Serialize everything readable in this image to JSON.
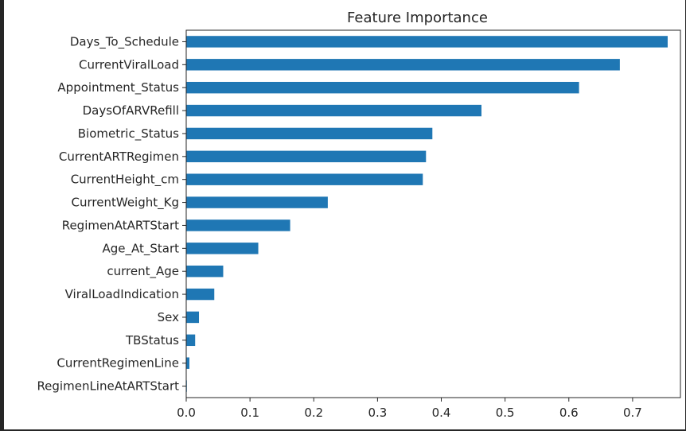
{
  "chart_data": {
    "type": "bar",
    "orientation": "horizontal",
    "title": "Feature Importance",
    "xlabel": "",
    "ylabel": "",
    "xlim": [
      0,
      0.775
    ],
    "grid": false,
    "legend": "none",
    "bar_color": "#1f77b4",
    "x_ticks": [
      "0.0",
      "0.1",
      "0.2",
      "0.3",
      "0.4",
      "0.5",
      "0.6",
      "0.7"
    ],
    "x_tick_values": [
      0.0,
      0.1,
      0.2,
      0.3,
      0.4,
      0.5,
      0.6,
      0.7
    ],
    "categories": [
      "Days_To_Schedule",
      "CurrentViralLoad",
      "Appointment_Status",
      "DaysOfARVRefill",
      "Biometric_Status",
      "CurrentARTRegimen",
      "CurrentHeight_cm",
      "CurrentWeight_Kg",
      "RegimenAtARTStart",
      "Age_At_Start",
      "current_Age",
      "ViralLoadIndication",
      "Sex",
      "TBStatus",
      "CurrentRegimenLine",
      "RegimenLineAtARTStart"
    ],
    "values": [
      0.755,
      0.68,
      0.616,
      0.463,
      0.386,
      0.376,
      0.371,
      0.222,
      0.163,
      0.113,
      0.058,
      0.044,
      0.02,
      0.014,
      0.005,
      0.001
    ]
  }
}
